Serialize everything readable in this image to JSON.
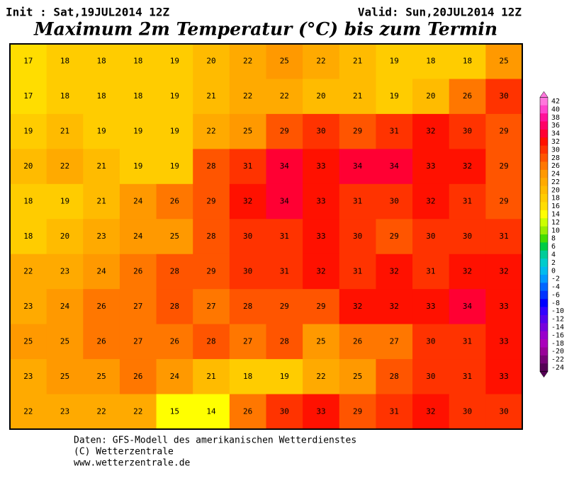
{
  "header": {
    "init": "Init : Sat,19JUL2014 12Z",
    "valid": "Valid: Sun,20JUL2014 12Z",
    "title": "Maximum 2m Temperatur (°C) bis zum Termin"
  },
  "map": {
    "grid": [
      [
        17,
        18,
        18,
        18,
        19,
        20,
        22,
        25,
        22,
        21,
        19,
        18,
        18,
        25
      ],
      [
        17,
        18,
        18,
        18,
        19,
        21,
        22,
        22,
        20,
        21,
        19,
        20,
        26,
        30
      ],
      [
        19,
        21,
        19,
        19,
        19,
        22,
        25,
        29,
        30,
        29,
        31,
        32,
        30,
        29
      ],
      [
        20,
        22,
        21,
        19,
        19,
        28,
        31,
        34,
        33,
        34,
        34,
        33,
        32,
        29
      ],
      [
        18,
        19,
        21,
        24,
        26,
        29,
        32,
        34,
        33,
        31,
        30,
        32,
        31,
        29
      ],
      [
        18,
        20,
        23,
        24,
        25,
        28,
        30,
        31,
        33,
        30,
        29,
        30,
        30,
        31
      ],
      [
        22,
        23,
        24,
        26,
        28,
        29,
        30,
        31,
        32,
        31,
        32,
        31,
        32,
        32
      ],
      [
        23,
        24,
        26,
        27,
        28,
        27,
        28,
        29,
        29,
        32,
        32,
        33,
        34,
        33
      ],
      [
        25,
        25,
        26,
        27,
        26,
        28,
        27,
        28,
        25,
        26,
        27,
        30,
        31,
        33
      ],
      [
        23,
        25,
        25,
        26,
        24,
        21,
        18,
        19,
        22,
        25,
        28,
        30,
        31,
        33
      ],
      [
        22,
        23,
        22,
        22,
        15,
        14,
        26,
        30,
        33,
        29,
        31,
        32,
        30,
        30
      ]
    ]
  },
  "colorbar": {
    "levels": [
      42,
      40,
      38,
      36,
      34,
      32,
      30,
      28,
      26,
      24,
      22,
      20,
      18,
      16,
      14,
      12,
      10,
      8,
      6,
      4,
      2,
      0,
      -2,
      -4,
      -6,
      -8,
      -10,
      -12,
      -14,
      -16,
      -18,
      -20,
      -22,
      -24
    ],
    "colors": [
      "#ff77dd",
      "#ff44cc",
      "#ff1199",
      "#ff0066",
      "#ff0033",
      "#ff1100",
      "#ff3300",
      "#ff5500",
      "#ff7700",
      "#ff9900",
      "#ffaa00",
      "#ffbb00",
      "#ffcc00",
      "#ffdd00",
      "#ffff00",
      "#ccff00",
      "#99ee00",
      "#44dd00",
      "#00cc44",
      "#00cc99",
      "#00cccc",
      "#00bbee",
      "#0099ff",
      "#0066ff",
      "#0033ff",
      "#0000ff",
      "#3300ff",
      "#5500ee",
      "#7700dd",
      "#9900cc",
      "#aa00bb",
      "#990099",
      "#770077",
      "#550055"
    ]
  },
  "footer": {
    "source": "Daten: GFS-Modell des amerikanischen Wetterdienstes",
    "copyright": "(C) Wetterzentrale",
    "url": "www.wetterzentrale.de"
  }
}
